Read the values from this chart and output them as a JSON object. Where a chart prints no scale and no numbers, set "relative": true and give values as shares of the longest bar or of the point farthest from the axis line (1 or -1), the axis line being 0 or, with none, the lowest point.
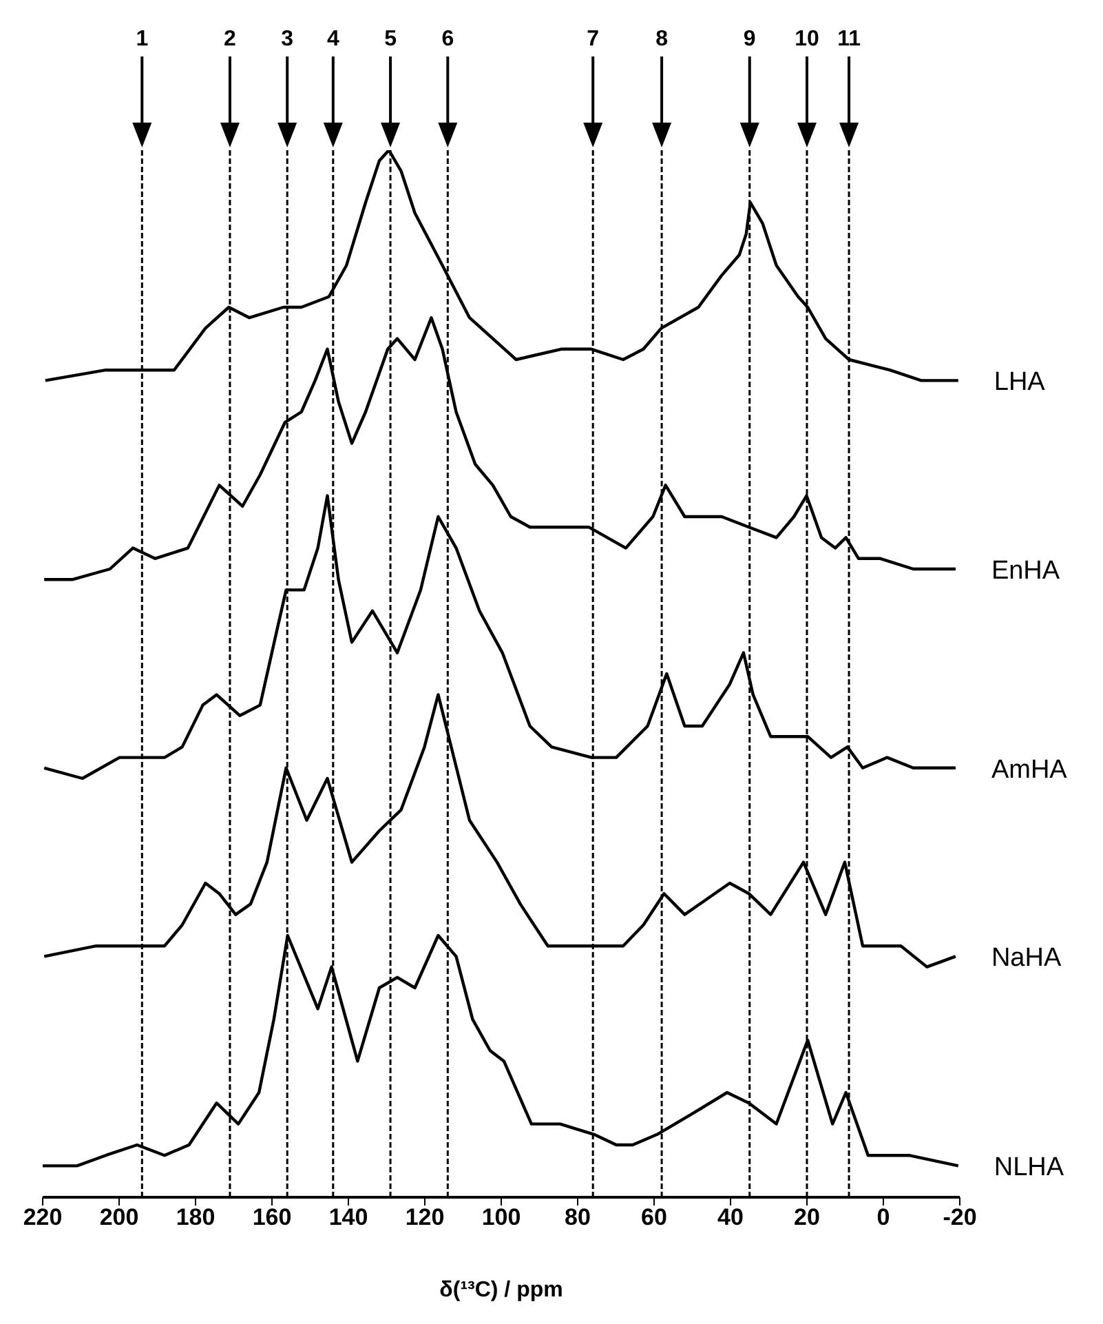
{
  "chart_data": {
    "type": "line",
    "xlabel": "δ(¹³C) / ppm",
    "xlim": [
      220,
      -20
    ],
    "xticks": [
      220,
      200,
      180,
      160,
      140,
      120,
      100,
      80,
      60,
      40,
      20,
      0,
      -20
    ],
    "relative": true,
    "grid": false,
    "legend": false,
    "annotations": [
      "1",
      "2",
      "3",
      "4",
      "5",
      "6",
      "7",
      "8",
      "9",
      "10",
      "11"
    ],
    "series": [
      {
        "name": "LHA",
        "color": "#000000",
        "x": [
          219.3,
          203.5,
          189.2,
          185.6,
          177.4,
          171.3,
          165.9,
          157.0,
          152.3,
          145.1,
          140.5,
          135.5,
          131.9,
          129.4,
          126.2,
          122.6,
          115.4,
          108.3,
          96.1,
          84.3,
          80.7,
          76.4,
          68.1,
          62.8,
          58.1,
          48.4,
          42.4,
          37.7,
          35.9,
          34.8,
          31.6,
          28.0,
          22.3,
          19.8,
          15.1,
          9.0,
          -1.7,
          -9.9,
          -19.6
        ],
        "values": [
          0.78,
          0.79,
          0.79,
          0.79,
          0.83,
          0.85,
          0.84,
          0.85,
          0.85,
          0.86,
          0.89,
          0.95,
          0.99,
          1.0,
          0.98,
          0.94,
          0.89,
          0.84,
          0.8,
          0.81,
          0.81,
          0.81,
          0.8,
          0.81,
          0.83,
          0.85,
          0.88,
          0.9,
          0.92,
          0.95,
          0.93,
          0.89,
          0.86,
          0.85,
          0.82,
          0.8,
          0.79,
          0.78,
          0.78
        ]
      },
      {
        "name": "EnHA",
        "color": "#000000",
        "x": [
          219.6,
          212.1,
          202.4,
          196.4,
          190.6,
          182.0,
          173.8,
          167.7,
          163.1,
          156.6,
          152.3,
          148.7,
          145.5,
          142.6,
          139.1,
          135.5,
          129.7,
          127.2,
          122.6,
          118.3,
          115.4,
          111.8,
          106.8,
          102.2,
          97.5,
          92.5,
          88.9,
          85.0,
          77.1,
          67.4,
          60.3,
          57.0,
          52.0,
          42.3,
          35.2,
          28.0,
          23.4,
          20.1,
          16.2,
          12.6,
          9.8,
          6.5,
          0.8,
          -7.8,
          -18.9
        ],
        "values": [
          0.59,
          0.59,
          0.6,
          0.62,
          0.61,
          0.62,
          0.68,
          0.66,
          0.69,
          0.74,
          0.75,
          0.78,
          0.81,
          0.76,
          0.72,
          0.75,
          0.81,
          0.82,
          0.8,
          0.84,
          0.81,
          0.75,
          0.7,
          0.68,
          0.65,
          0.64,
          0.64,
          0.64,
          0.64,
          0.62,
          0.65,
          0.68,
          0.65,
          0.65,
          0.64,
          0.63,
          0.65,
          0.67,
          0.63,
          0.62,
          0.63,
          0.61,
          0.61,
          0.6,
          0.6
        ]
      },
      {
        "name": "AmHA",
        "color": "#000000",
        "x": [
          219.6,
          209.6,
          199.9,
          193.5,
          188.1,
          183.5,
          178.1,
          174.5,
          168.4,
          163.1,
          158.8,
          156.3,
          151.6,
          148.0,
          145.5,
          142.6,
          139.1,
          133.7,
          127.2,
          121.1,
          116.5,
          111.8,
          105.7,
          99.7,
          92.5,
          86.8,
          76.4,
          69.9,
          61.7,
          56.7,
          52.0,
          47.4,
          40.2,
          36.6,
          34.1,
          29.5,
          19.8,
          13.7,
          9.4,
          5.4,
          -1.0,
          -7.8,
          -18.9
        ],
        "values": [
          0.41,
          0.4,
          0.42,
          0.42,
          0.42,
          0.43,
          0.47,
          0.48,
          0.46,
          0.47,
          0.54,
          0.58,
          0.58,
          0.62,
          0.67,
          0.59,
          0.53,
          0.56,
          0.52,
          0.58,
          0.65,
          0.62,
          0.56,
          0.52,
          0.45,
          0.43,
          0.42,
          0.42,
          0.45,
          0.5,
          0.45,
          0.45,
          0.49,
          0.52,
          0.48,
          0.44,
          0.44,
          0.42,
          0.43,
          0.41,
          0.42,
          0.41,
          0.41
        ]
      },
      {
        "name": "NaHA",
        "color": "#000000",
        "x": [
          219.6,
          206.0,
          194.2,
          188.1,
          183.5,
          177.4,
          173.8,
          169.5,
          165.6,
          161.3,
          156.3,
          150.9,
          145.5,
          139.1,
          131.9,
          126.2,
          120.1,
          116.5,
          108.3,
          101.1,
          95.0,
          87.8,
          76.4,
          68.1,
          62.8,
          57.4,
          52.0,
          40.2,
          35.2,
          29.5,
          20.9,
          15.1,
          10.1,
          5.4,
          -4.6,
          -11.4,
          -18.9
        ],
        "values": [
          0.23,
          0.24,
          0.24,
          0.24,
          0.26,
          0.3,
          0.29,
          0.27,
          0.28,
          0.32,
          0.41,
          0.36,
          0.4,
          0.32,
          0.35,
          0.37,
          0.43,
          0.48,
          0.36,
          0.32,
          0.28,
          0.24,
          0.24,
          0.24,
          0.26,
          0.29,
          0.27,
          0.3,
          0.29,
          0.27,
          0.32,
          0.27,
          0.32,
          0.24,
          0.24,
          0.22,
          0.23
        ]
      },
      {
        "name": "NLHA",
        "color": "#000000",
        "x": [
          220,
          211.0,
          203.5,
          195.3,
          188.1,
          181.7,
          174.5,
          168.8,
          163.4,
          159.5,
          155.9,
          148.0,
          144.4,
          137.6,
          131.9,
          127.2,
          122.6,
          116.5,
          111.8,
          107.5,
          102.9,
          99.3,
          92.1,
          84.6,
          75.7,
          69.9,
          65.6,
          59.2,
          49.9,
          40.9,
          35.2,
          28.0,
          19.8,
          13.3,
          9.8,
          4.0,
          -6.7,
          -19.6
        ],
        "values": [
          0.03,
          0.03,
          0.04,
          0.05,
          0.04,
          0.05,
          0.09,
          0.07,
          0.1,
          0.17,
          0.25,
          0.18,
          0.22,
          0.13,
          0.2,
          0.21,
          0.2,
          0.25,
          0.23,
          0.17,
          0.14,
          0.13,
          0.07,
          0.07,
          0.06,
          0.05,
          0.05,
          0.06,
          0.08,
          0.1,
          0.09,
          0.07,
          0.15,
          0.07,
          0.1,
          0.04,
          0.04,
          0.03
        ]
      }
    ],
    "ref_lines": [
      {
        "axis": "x",
        "value": 194,
        "line_style": "dashed",
        "color": "#000000"
      },
      {
        "axis": "x",
        "value": 171,
        "line_style": "dashed",
        "color": "#000000"
      },
      {
        "axis": "x",
        "value": 156,
        "line_style": "dashed",
        "color": "#000000"
      },
      {
        "axis": "x",
        "value": 144,
        "line_style": "dashed",
        "color": "#000000"
      },
      {
        "axis": "x",
        "value": 129,
        "line_style": "dashed",
        "color": "#000000"
      },
      {
        "axis": "x",
        "value": 114,
        "line_style": "dashed",
        "color": "#000000"
      },
      {
        "axis": "x",
        "value": 76,
        "line_style": "dashed",
        "color": "#000000"
      },
      {
        "axis": "x",
        "value": 58,
        "line_style": "dashed",
        "color": "#000000"
      },
      {
        "axis": "x",
        "value": 35,
        "line_style": "dashed",
        "color": "#000000"
      },
      {
        "axis": "x",
        "value": 20,
        "line_style": "dashed",
        "color": "#000000"
      },
      {
        "axis": "x",
        "value": 9,
        "line_style": "dashed",
        "color": "#000000"
      }
    ]
  }
}
